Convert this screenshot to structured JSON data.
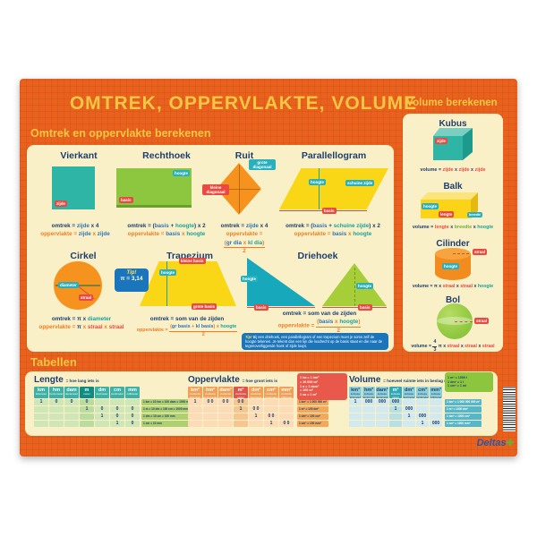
{
  "header": {
    "title": "Omtrek, oppervlakte, volume"
  },
  "sections": {
    "left_title": "Omtrek en oppervlakte berekenen",
    "right_title": "Volume berekenen",
    "tables_title": "Tabellen"
  },
  "tip_pi": {
    "label": "Tip!",
    "value": "π = 3,14"
  },
  "tipbox": {
    "label": "Tip!",
    "text": "Bij een driehoek, een parallellogram of een trapezium moet je soms zelf de hoogte tekenen. Je tekent dan een lijn die loodrecht op de basis staat en die naar de tegenoverliggende hoek of zijde loopt."
  },
  "shapes": {
    "vierkant": {
      "title": "Vierkant",
      "chips": {
        "zijde": "zijde"
      },
      "omtrek": {
        "parts": [
          {
            "t": "omtrek = ",
            "c": "navy"
          },
          {
            "t": "zijde",
            "c": "blue"
          },
          {
            "t": " x 4",
            "c": "navy"
          }
        ]
      },
      "opp": {
        "parts": [
          {
            "t": "oppervlakte = ",
            "c": "orange"
          },
          {
            "t": "zijde",
            "c": "blue"
          },
          {
            "t": " x ",
            "c": "orange"
          },
          {
            "t": "zijde",
            "c": "blue"
          }
        ]
      }
    },
    "rechthoek": {
      "title": "Rechthoek",
      "chips": {
        "hoogte": "hoogte",
        "basis": "basis"
      },
      "omtrek": {
        "parts": [
          {
            "t": "omtrek = (",
            "c": "navy"
          },
          {
            "t": "basis",
            "c": "blue"
          },
          {
            "t": " + ",
            "c": "navy"
          },
          {
            "t": "hoogte",
            "c": "teal"
          },
          {
            "t": ") x 2",
            "c": "navy"
          }
        ]
      },
      "opp": {
        "parts": [
          {
            "t": "oppervlakte = ",
            "c": "orange"
          },
          {
            "t": "basis",
            "c": "blue"
          },
          {
            "t": " x ",
            "c": "orange"
          },
          {
            "t": "hoogte",
            "c": "teal"
          }
        ]
      }
    },
    "ruit": {
      "title": "Ruit",
      "chips": {
        "grote": "grote diagonaal",
        "kleine": "kleine diagonaal"
      },
      "omtrek": {
        "parts": [
          {
            "t": "omtrek = ",
            "c": "navy"
          },
          {
            "t": "zijde",
            "c": "blue"
          },
          {
            "t": " x 4",
            "c": "navy"
          }
        ]
      },
      "opp": {
        "parts": [
          {
            "t": "oppervlakte = ",
            "c": "orange"
          }
        ],
        "num": [
          {
            "t": "(",
            "c": "orange"
          },
          {
            "t": "gr dia",
            "c": "blue"
          },
          {
            "t": " x ",
            "c": "orange"
          },
          {
            "t": "kl dia",
            "c": "teal"
          },
          {
            "t": ")",
            "c": "orange"
          }
        ],
        "den": {
          "t": "2",
          "c": "orange"
        }
      }
    },
    "parallellogram": {
      "title": "Parallellogram",
      "chips": {
        "hoogte": "hoogte",
        "schuine": "schuine zijde",
        "basis": "basis"
      },
      "omtrek": {
        "parts": [
          {
            "t": "omtrek = (",
            "c": "navy"
          },
          {
            "t": "basis",
            "c": "blue"
          },
          {
            "t": " + ",
            "c": "navy"
          },
          {
            "t": "schuine zijde",
            "c": "teal"
          },
          {
            "t": ") x 2",
            "c": "navy"
          }
        ]
      },
      "opp": {
        "parts": [
          {
            "t": "oppervlakte = ",
            "c": "orange"
          },
          {
            "t": "basis",
            "c": "blue"
          },
          {
            "t": " x ",
            "c": "orange"
          },
          {
            "t": "hoogte",
            "c": "teal"
          }
        ]
      }
    },
    "cirkel": {
      "title": "Cirkel",
      "chips": {
        "diameter": "diameter",
        "straal": "straal"
      },
      "omtrek": {
        "parts": [
          {
            "t": "omtrek = ",
            "c": "navy"
          },
          {
            "t": "π x ",
            "c": "navy"
          },
          {
            "t": "diameter",
            "c": "teal"
          }
        ]
      },
      "opp": {
        "parts": [
          {
            "t": "oppervlakte = ",
            "c": "orange"
          },
          {
            "t": "π",
            "c": "navy"
          },
          {
            "t": " x ",
            "c": "orange"
          },
          {
            "t": "straal",
            "c": "red"
          },
          {
            "t": " x ",
            "c": "orange"
          },
          {
            "t": "straal",
            "c": "red"
          }
        ]
      }
    },
    "trapezium": {
      "title": "Trapezium",
      "chips": {
        "kleine": "kleine basis",
        "hoogte": "hoogte",
        "grote": "grote basis"
      },
      "omtrek": {
        "parts": [
          {
            "t": "omtrek = som van de zijden",
            "c": "navy"
          }
        ]
      },
      "opp": {
        "parts": [
          {
            "t": "oppervlakte = ",
            "c": "orange"
          }
        ],
        "num": [
          {
            "t": "(",
            "c": "orange"
          },
          {
            "t": "gr basis",
            "c": "blue"
          },
          {
            "t": " + ",
            "c": "orange"
          },
          {
            "t": "kl basis",
            "c": "blue"
          },
          {
            "t": ") x ",
            "c": "orange"
          },
          {
            "t": "hoogte",
            "c": "teal"
          }
        ],
        "den": {
          "t": "2",
          "c": "orange"
        }
      }
    },
    "driehoek": {
      "title": "Driehoek",
      "chips": {
        "hoogte": "hoogte",
        "basis": "basis"
      },
      "omtrek": {
        "parts": [
          {
            "t": "omtrek = som van de zijden",
            "c": "navy"
          }
        ]
      },
      "opp": {
        "parts": [
          {
            "t": "oppervlakte = ",
            "c": "orange"
          }
        ],
        "num": [
          {
            "t": "(",
            "c": "orange"
          },
          {
            "t": "basis",
            "c": "blue"
          },
          {
            "t": " x ",
            "c": "orange"
          },
          {
            "t": "hoogte",
            "c": "teal"
          },
          {
            "t": ")",
            "c": "orange"
          }
        ],
        "den": {
          "t": "2",
          "c": "orange"
        }
      }
    }
  },
  "volumes": {
    "kubus": {
      "title": "Kubus",
      "chips": {
        "zijde": "zijde"
      },
      "formula": {
        "parts": [
          {
            "t": "volume = ",
            "c": "navy"
          },
          {
            "t": "zijde",
            "c": "red"
          },
          {
            "t": " x ",
            "c": "navy"
          },
          {
            "t": "zijde",
            "c": "red"
          },
          {
            "t": " x ",
            "c": "navy"
          },
          {
            "t": "zijde",
            "c": "red"
          }
        ]
      }
    },
    "balk": {
      "title": "Balk",
      "chips": {
        "hoogte": "hoogte",
        "lengte": "lengte",
        "breedte": "breedte"
      },
      "formula": {
        "parts": [
          {
            "t": "volume = ",
            "c": "navy"
          },
          {
            "t": "lengte",
            "c": "red"
          },
          {
            "t": " x ",
            "c": "navy"
          },
          {
            "t": "breedte",
            "c": "green"
          },
          {
            "t": " x ",
            "c": "navy"
          },
          {
            "t": "hoogte",
            "c": "teal"
          }
        ]
      }
    },
    "cilinder": {
      "title": "Cilinder",
      "chips": {
        "straal": "straal",
        "hoogte": "hoogte"
      },
      "formula": {
        "parts": [
          {
            "t": "volume = ",
            "c": "navy"
          },
          {
            "t": "π x ",
            "c": "navy"
          },
          {
            "t": "straal",
            "c": "red"
          },
          {
            "t": " x ",
            "c": "navy"
          },
          {
            "t": "straal",
            "c": "red"
          },
          {
            "t": " x ",
            "c": "navy"
          },
          {
            "t": "hoogte",
            "c": "teal"
          }
        ]
      }
    },
    "bol": {
      "title": "Bol",
      "chips": {
        "straal": "straal"
      },
      "formula": {
        "parts": [
          {
            "t": "volume = ",
            "c": "navy"
          }
        ],
        "num": [
          {
            "t": "4",
            "c": "navy"
          }
        ],
        "den": {
          "t": "3",
          "c": "navy"
        },
        "tail": [
          {
            "t": " π x ",
            "c": "navy"
          },
          {
            "t": "straal",
            "c": "red"
          },
          {
            "t": " x ",
            "c": "navy"
          },
          {
            "t": "straal",
            "c": "red"
          },
          {
            "t": " x ",
            "c": "navy"
          },
          {
            "t": "straal",
            "c": "red"
          }
        ]
      }
    }
  },
  "tables": {
    "lengte": {
      "title": "Lengte",
      "subtitle": "= hoe lang iets is",
      "highlight": 3,
      "columns": [
        {
          "unit": "km",
          "name": "kilometer"
        },
        {
          "unit": "hm",
          "name": "hectometer"
        },
        {
          "unit": "dam",
          "name": "decameter"
        },
        {
          "unit": "m",
          "name": "meter"
        },
        {
          "unit": "dm",
          "name": "decimeter"
        },
        {
          "unit": "cm",
          "name": "centimeter"
        },
        {
          "unit": "mm",
          "name": "millimeter"
        }
      ],
      "rows": [
        {
          "cells": [
            "1",
            "0",
            "0",
            "0",
            "",
            "",
            ""
          ],
          "note": "1 km = 10 hm = 100 dam = 1000 m"
        },
        {
          "cells": [
            "",
            "",
            "",
            "1",
            "0",
            "0",
            "0"
          ],
          "note": "1 m = 10 dm = 100 cm = 1000 mm"
        },
        {
          "cells": [
            "",
            "",
            "",
            "",
            "1",
            "0",
            "0"
          ],
          "note": "1 dm = 10 cm = 100 mm"
        },
        {
          "cells": [
            "",
            "",
            "",
            "",
            "",
            "1",
            "0"
          ],
          "note": "1 cm = 10 mm"
        }
      ]
    },
    "oppervlakte": {
      "title": "Oppervlakte",
      "subtitle": "= hoe groot iets is",
      "highlight": 3,
      "columns": [
        {
          "unit": "km²",
          "name": "vierkante kilometer"
        },
        {
          "unit": "hm²",
          "name": "vierkante hectometer"
        },
        {
          "unit": "dam²",
          "name": "vierkante decameter"
        },
        {
          "unit": "m²",
          "name": "vierkante meter"
        },
        {
          "unit": "dm²",
          "name": "vierkante decimeter"
        },
        {
          "unit": "cm²",
          "name": "vierkante centimeter"
        },
        {
          "unit": "mm²",
          "name": "vierkante millimeter"
        }
      ],
      "rows": [
        {
          "cells": [
            "1",
            "0 0",
            "0 0",
            "0 0",
            "",
            "",
            ""
          ],
          "note": "1 km² = 1 000 000 m²"
        },
        {
          "cells": [
            "",
            "",
            "",
            "1",
            "0 0",
            "",
            ""
          ],
          "note": "1 m² = 100 dm²"
        },
        {
          "cells": [
            "",
            "",
            "",
            "",
            "1",
            "0 0",
            ""
          ],
          "note": "1 dm² = 100 cm²"
        },
        {
          "cells": [
            "",
            "",
            "",
            "",
            "",
            "1",
            "0 0"
          ],
          "note": "1 cm² = 100 mm²"
        }
      ],
      "info": [
        "1 ha = 1 hm²",
        "= 10 000 m²",
        "1 a = 1 dam²",
        "= 100 m²",
        "1 ca = 1 m²"
      ]
    },
    "volume": {
      "title": "Volume",
      "subtitle": "= hoeveel ruimte iets in beslag neemt",
      "highlight": 3,
      "columns": [
        {
          "unit": "km³",
          "name": "kubieke kilometer"
        },
        {
          "unit": "hm³",
          "name": "kubieke hectometer"
        },
        {
          "unit": "dam³",
          "name": "kubieke decameter"
        },
        {
          "unit": "m³",
          "name": "kubieke meter"
        },
        {
          "unit": "dm³",
          "name": "kubieke decimeter"
        },
        {
          "unit": "cm³",
          "name": "kubieke centimeter"
        },
        {
          "unit": "mm³",
          "name": "kubieke millimeter"
        }
      ],
      "rows": [
        {
          "cells": [
            "1",
            "000",
            "000",
            "000",
            "",
            "",
            ""
          ],
          "note": "1 km³ = 1 000 000 000 m³"
        },
        {
          "cells": [
            "",
            "",
            "",
            "1",
            "000",
            "",
            ""
          ],
          "note": "1 m³ = 1000 dm³"
        },
        {
          "cells": [
            "",
            "",
            "",
            "",
            "1",
            "000",
            ""
          ],
          "note": "1 dm³ = 1000 cm³"
        },
        {
          "cells": [
            "",
            "",
            "",
            "",
            "",
            "1",
            "000"
          ],
          "note": "1 cm³ = 1000 mm³"
        }
      ],
      "info": [
        "1 m³ = 1000 l",
        "1 dm³ = 1 l",
        "1 cm³ = 1 ml"
      ]
    }
  },
  "footer": {
    "brand": "Deltas"
  }
}
